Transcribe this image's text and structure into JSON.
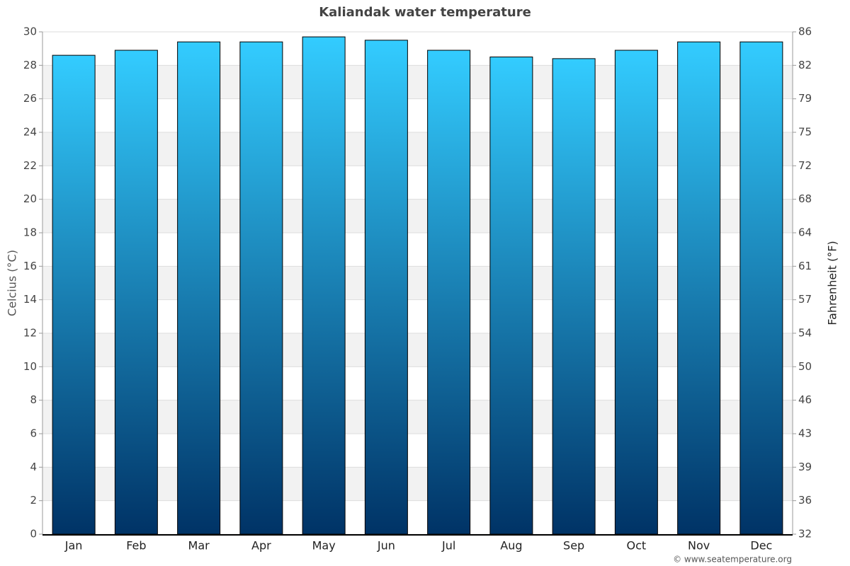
{
  "chart_data": {
    "type": "bar",
    "title": "Kaliandak water temperature",
    "y_label": "Celcius (°C)",
    "y2_label": "Fahrenheit (°F)",
    "source": "© www.seatemperature.org",
    "categories": [
      "Jan",
      "Feb",
      "Mar",
      "Apr",
      "May",
      "Jun",
      "Jul",
      "Aug",
      "Sep",
      "Oct",
      "Nov",
      "Dec"
    ],
    "values": [
      28.6,
      28.9,
      29.4,
      29.4,
      29.7,
      29.5,
      28.9,
      28.5,
      28.4,
      28.9,
      29.4,
      29.4
    ],
    "color": [
      "#33ccff",
      "#003366"
    ],
    "ylim": [
      0,
      30
    ],
    "yticks": [
      0,
      2,
      4,
      6,
      8,
      10,
      12,
      14,
      16,
      18,
      20,
      22,
      24,
      26,
      28,
      30
    ],
    "y2lim": [
      32,
      86
    ],
    "y2ticks": [
      32,
      {
        "value": 35.6,
        "label": "36"
      },
      {
        "value": 39.2,
        "label": "39"
      },
      {
        "value": 42.8,
        "label": "43"
      },
      {
        "value": 46.4,
        "label": "46"
      },
      50,
      {
        "value": 53.6,
        "label": "54"
      },
      {
        "value": 57.2,
        "label": "57"
      },
      {
        "value": 60.8,
        "label": "61"
      },
      {
        "value": 64.4,
        "label": "64"
      },
      68,
      {
        "value": 71.6,
        "label": "72"
      },
      {
        "value": 75.2,
        "label": "75"
      },
      {
        "value": 78.8,
        "label": "79"
      },
      {
        "value": 82.4,
        "label": "82"
      },
      86
    ],
    "grid": true
  }
}
